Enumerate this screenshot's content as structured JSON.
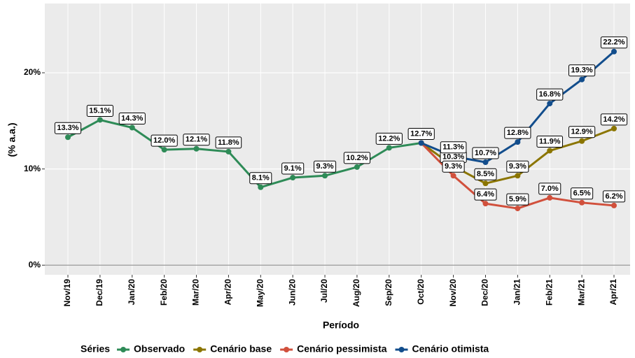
{
  "chart_data": {
    "type": "line",
    "x_label": "Período",
    "y_label": "(% a.a.)",
    "legend_title": "Séries",
    "legend_position": "bottom",
    "grid": true,
    "categories": [
      "Nov/19",
      "Dec/19",
      "Jan/20",
      "Feb/20",
      "Mar/20",
      "Apr/20",
      "May/20",
      "Jun/20",
      "Jul/20",
      "Aug/20",
      "Sep/20",
      "Oct/20",
      "Nov/20",
      "Dec/20",
      "Jan/21",
      "Feb/21",
      "Mar/21",
      "Apr/21"
    ],
    "ylim": [
      -1.0,
      27.2
    ],
    "yticks": [
      {
        "value": 0,
        "label": "0%"
      },
      {
        "value": 10,
        "label": "10%"
      },
      {
        "value": 20,
        "label": "20%"
      }
    ],
    "series": [
      {
        "name": "Observado",
        "color": "#2e8b57",
        "values": [
          13.3,
          15.1,
          14.3,
          12.0,
          12.1,
          11.8,
          8.1,
          9.1,
          9.3,
          10.2,
          12.2,
          12.7,
          null,
          null,
          null,
          null,
          null,
          null
        ],
        "value_labels": [
          "13.3%",
          "15.1%",
          "14.3%",
          "12.0%",
          "12.1%",
          "11.8%",
          "8.1%",
          "9.1%",
          "9.3%",
          "10.2%",
          "12.2%",
          "12.7%",
          null,
          null,
          null,
          null,
          null,
          null
        ]
      },
      {
        "name": "Cenário base",
        "color": "#8b7500",
        "values": [
          null,
          null,
          null,
          null,
          null,
          null,
          null,
          null,
          null,
          null,
          null,
          12.7,
          10.3,
          8.5,
          9.3,
          11.9,
          12.9,
          14.2
        ],
        "value_labels": [
          null,
          null,
          null,
          null,
          null,
          null,
          null,
          null,
          null,
          null,
          null,
          null,
          "10.3%",
          "8.5%",
          "9.3%",
          "11.9%",
          "12.9%",
          "14.2%"
        ]
      },
      {
        "name": "Cenário pessimista",
        "color": "#d1503c",
        "values": [
          null,
          null,
          null,
          null,
          null,
          null,
          null,
          null,
          null,
          null,
          null,
          12.7,
          9.3,
          6.4,
          5.9,
          7.0,
          6.5,
          6.2
        ],
        "value_labels": [
          null,
          null,
          null,
          null,
          null,
          null,
          null,
          null,
          null,
          null,
          null,
          null,
          "9.3%",
          "6.4%",
          "5.9%",
          "7.0%",
          "6.5%",
          "6.2%"
        ]
      },
      {
        "name": "Cenário otimista",
        "color": "#124d8c",
        "values": [
          null,
          null,
          null,
          null,
          null,
          null,
          null,
          null,
          null,
          null,
          null,
          12.7,
          11.3,
          10.7,
          12.8,
          16.8,
          19.3,
          22.2
        ],
        "value_labels": [
          null,
          null,
          null,
          null,
          null,
          null,
          null,
          null,
          null,
          null,
          null,
          null,
          "11.3%",
          "10.7%",
          "12.8%",
          "16.8%",
          "19.3%",
          "22.2%"
        ]
      }
    ]
  }
}
